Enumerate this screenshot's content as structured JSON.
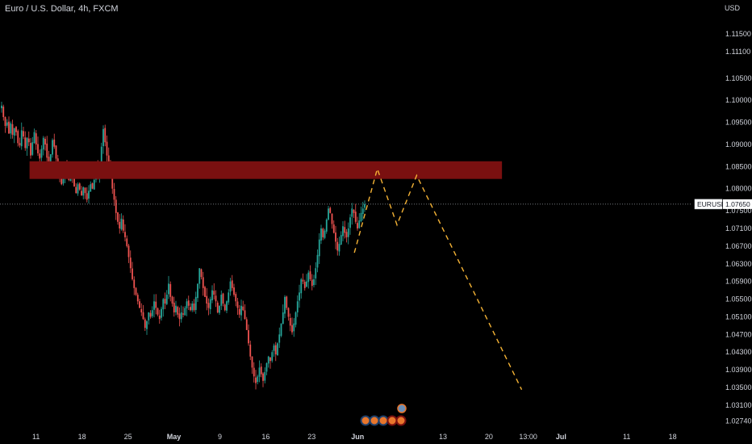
{
  "header": {
    "title": "Euro / U.S. Dollar, 4h, FXCM"
  },
  "chart_data": {
    "type": "candlestick",
    "currency": "USD",
    "symbol": "EURUSD",
    "last_price": "1.07650",
    "ylim": [
      1.0255,
      1.1227
    ],
    "y_ticks": [
      "1.11500",
      "1.11100",
      "1.10500",
      "1.10000",
      "1.09500",
      "1.09000",
      "1.08500",
      "1.08000",
      "1.07500",
      "1.07100",
      "1.06700",
      "1.06300",
      "1.05900",
      "1.05500",
      "1.05100",
      "1.04700",
      "1.04300",
      "1.03900",
      "1.03500",
      "1.03100",
      "1.02740"
    ],
    "x_ticks": [
      {
        "label": "11",
        "slot": 11
      },
      {
        "label": "18",
        "slot": 18
      },
      {
        "label": "25",
        "slot": 25
      },
      {
        "label": "May",
        "slot": 32,
        "bold": true
      },
      {
        "label": "9",
        "slot": 39
      },
      {
        "label": "16",
        "slot": 46
      },
      {
        "label": "23",
        "slot": 53
      },
      {
        "label": "Jun",
        "slot": 60,
        "bold": true
      },
      {
        "label": "13",
        "slot": 73
      },
      {
        "label": "20",
        "slot": 80
      },
      {
        "label": "13:00",
        "slot": 86
      },
      {
        "label": "Jul",
        "slot": 91,
        "bold": true
      },
      {
        "label": "11",
        "slot": 101
      },
      {
        "label": "18",
        "slot": 108
      }
    ],
    "x_range": [
      5.5,
      111
    ],
    "resistance_zone": {
      "x_start": 10,
      "x_end": 82,
      "y_low": 1.0822,
      "y_high": 1.0862,
      "color": "#7a1010"
    },
    "projection_path": [
      [
        59.5,
        1.0655
      ],
      [
        63,
        1.0845
      ],
      [
        66,
        1.0718
      ],
      [
        69,
        1.083
      ],
      [
        85,
        1.0345
      ]
    ],
    "closes": [
      1.0988,
      1.0962,
      1.0942,
      1.095,
      1.0925,
      1.0948,
      1.0922,
      1.0937,
      1.0928,
      1.0903,
      1.0898,
      1.0932,
      1.0918,
      1.0892,
      1.0915,
      1.0905,
      1.0875,
      1.0905,
      1.0928,
      1.09,
      1.088,
      1.0868,
      1.089,
      1.0915,
      1.09,
      1.087,
      1.0855,
      1.0878,
      1.091,
      1.0895,
      1.0868,
      1.0845,
      1.083,
      1.081,
      1.0828,
      1.0852,
      1.0838,
      1.082,
      1.0838,
      1.0828,
      1.0805,
      1.079,
      1.081,
      1.0798,
      1.0785,
      1.0803,
      1.079,
      1.0775,
      1.0795,
      1.081,
      1.08,
      1.082,
      1.0848,
      1.083,
      1.0858,
      1.0895,
      1.0935,
      1.0905,
      1.0875,
      1.0855,
      1.0825,
      1.08,
      1.0775,
      1.0745,
      1.0725,
      1.071,
      1.0732,
      1.0705,
      1.069,
      1.067,
      1.0645,
      1.062,
      1.0595,
      1.0575,
      1.056,
      1.0545,
      1.053,
      1.052,
      1.0505,
      1.0485,
      1.05,
      1.052,
      1.051,
      1.0525,
      1.0545,
      1.053,
      1.0515,
      1.0505,
      1.0528,
      1.055,
      1.054,
      1.056,
      1.0585,
      1.0555,
      1.054,
      1.052,
      1.0535,
      1.0515,
      1.0505,
      1.052,
      1.0515,
      1.053,
      1.0545,
      1.0535,
      1.0525,
      1.054,
      1.0525,
      1.0555,
      1.0585,
      1.062,
      1.06,
      1.0575,
      1.0555,
      1.054,
      1.053,
      1.055,
      1.057,
      1.056,
      1.0545,
      1.052,
      1.0535,
      1.056,
      1.054,
      1.0525,
      1.0545,
      1.0565,
      1.059,
      1.0575,
      1.056,
      1.0545,
      1.053,
      1.0515,
      1.0535,
      1.0525,
      1.0505,
      1.048,
      1.045,
      1.042,
      1.0395,
      1.0375,
      1.036,
      1.0375,
      1.0395,
      1.038,
      1.0365,
      1.0385,
      1.0405,
      1.042,
      1.041,
      1.043,
      1.0445,
      1.0425,
      1.045,
      1.047,
      1.0495,
      1.052,
      1.0555,
      1.053,
      1.051,
      1.049,
      1.0475,
      1.0495,
      1.052,
      1.0545,
      1.0565,
      1.0595,
      1.059,
      1.0575,
      1.059,
      1.061,
      1.0595,
      1.058,
      1.0595,
      1.062,
      1.065,
      1.0685,
      1.071,
      1.069,
      1.0705,
      1.073,
      1.0755,
      1.0745,
      1.072,
      1.07,
      1.068,
      1.066,
      1.0675,
      1.0695,
      1.0715,
      1.07,
      1.069,
      1.071,
      1.0735,
      1.0755,
      1.0745,
      1.0725,
      1.071,
      1.0728,
      1.0745,
      1.0755,
      1.0765
    ]
  }
}
